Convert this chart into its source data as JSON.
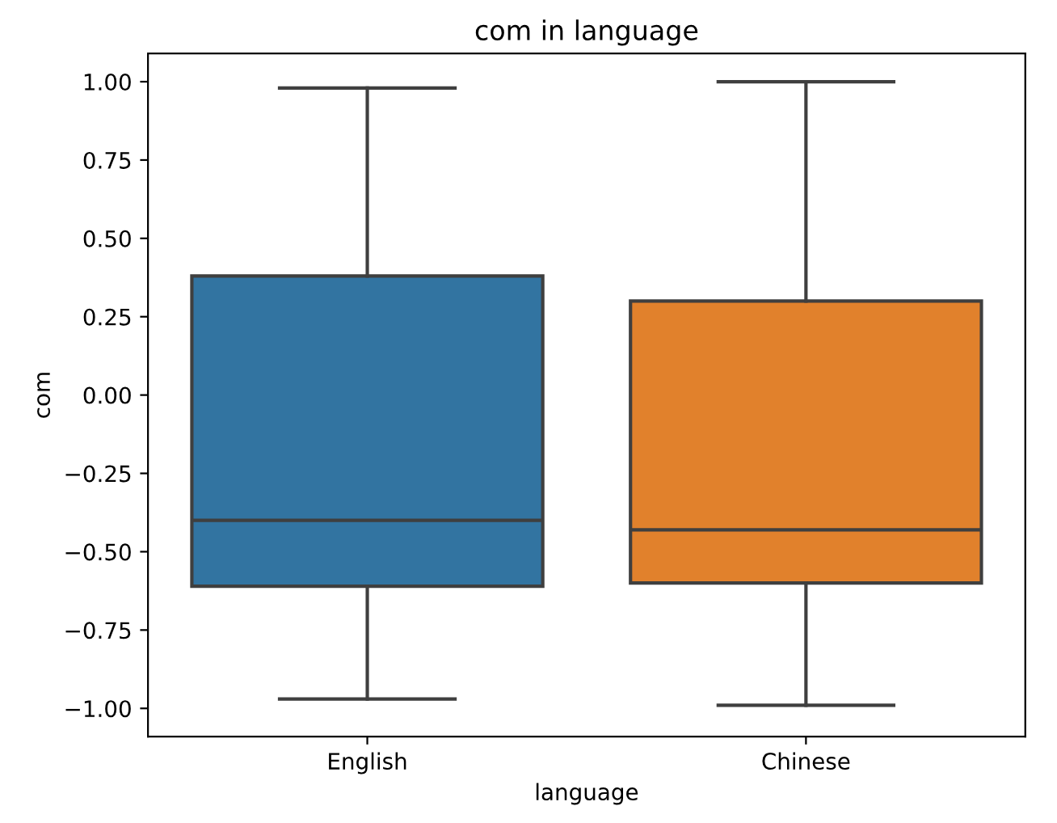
{
  "chart_data": {
    "type": "box",
    "title": "com in language",
    "xlabel": "language",
    "ylabel": "com",
    "categories": [
      "English",
      "Chinese"
    ],
    "colors": [
      "#3274a1",
      "#e1812c"
    ],
    "boxes": [
      {
        "low": -0.97,
        "q1": -0.61,
        "median": -0.4,
        "q3": 0.38,
        "high": 0.98
      },
      {
        "low": -0.99,
        "q1": -0.6,
        "median": -0.43,
        "q3": 0.3,
        "high": 1.0
      }
    ],
    "ylim": [
      -1.09,
      1.09
    ],
    "yticks": [
      {
        "value": -1.0,
        "label": "−1.00"
      },
      {
        "value": -0.75,
        "label": "−0.75"
      },
      {
        "value": -0.5,
        "label": "−0.50"
      },
      {
        "value": -0.25,
        "label": "−0.25"
      },
      {
        "value": 0.0,
        "label": "0.00"
      },
      {
        "value": 0.25,
        "label": "0.25"
      },
      {
        "value": 0.5,
        "label": "0.50"
      },
      {
        "value": 0.75,
        "label": "0.75"
      },
      {
        "value": 1.0,
        "label": "1.00"
      }
    ],
    "grid": false
  }
}
